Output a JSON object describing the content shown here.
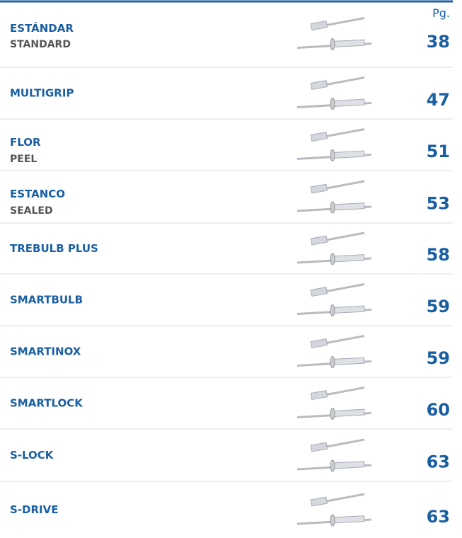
{
  "header": {
    "page_label": "Pg."
  },
  "rows": [
    {
      "title": "ESTÁNDAR",
      "subtitle": "STANDARD",
      "page": 38
    },
    {
      "title": "MULTIGRIP",
      "page": 47
    },
    {
      "title": "FLOR",
      "subtitle": "PEEL",
      "page": 51
    },
    {
      "title": "ESTANCO",
      "subtitle": "SEALED",
      "page": 53
    },
    {
      "title": "TREBULB PLUS",
      "page": 58
    },
    {
      "title": "SMARTBULB",
      "page": 59
    },
    {
      "title": "SMARTINOX",
      "page": 59
    },
    {
      "title": "SMARTLOCK",
      "page": 60
    },
    {
      "title": "S-LOCK",
      "page": 63
    },
    {
      "title": "S-DRIVE",
      "page": 63
    }
  ]
}
